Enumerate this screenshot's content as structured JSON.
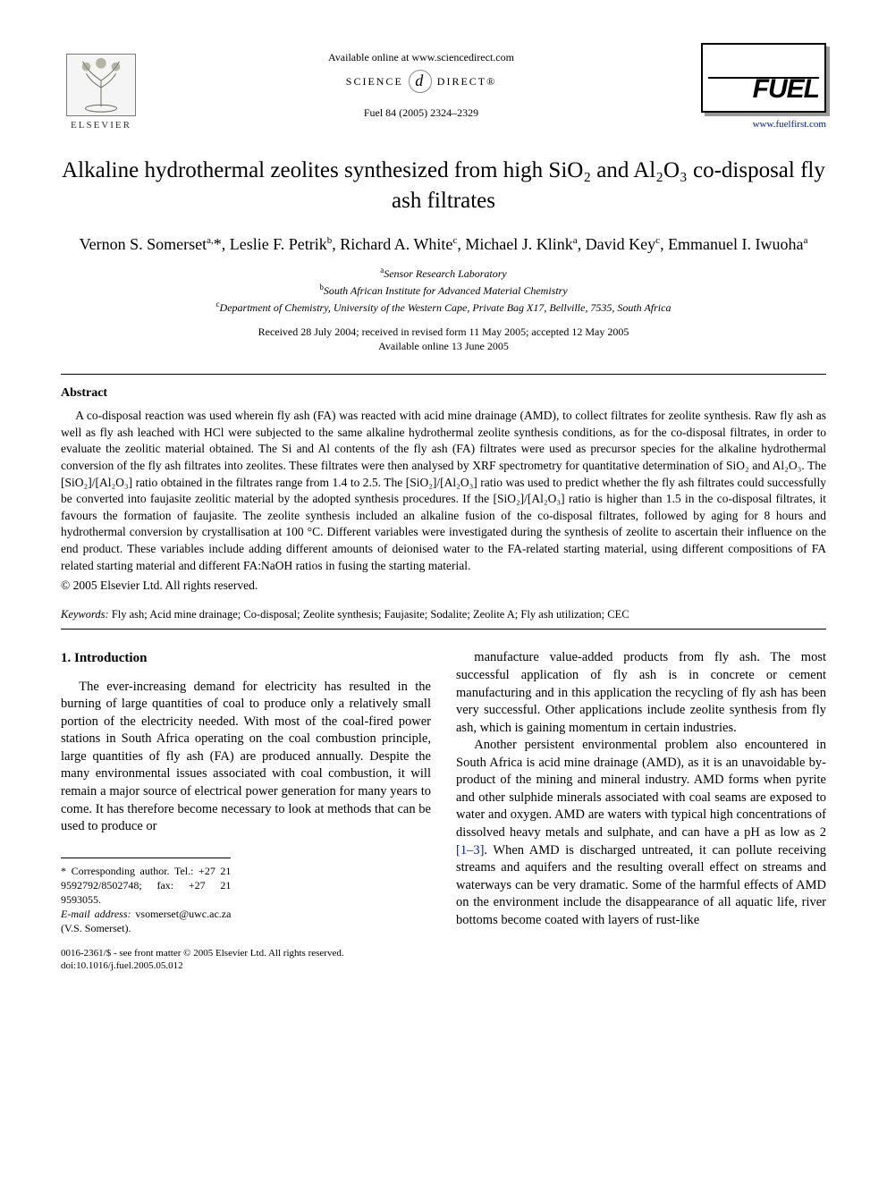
{
  "header": {
    "available_online": "Available online at www.sciencedirect.com",
    "sd_left": "SCIENCE",
    "sd_right": "DIRECT®",
    "citation": "Fuel 84 (2005) 2324–2329",
    "elsevier_text": "ELSEVIER",
    "fuel_logo_text": "FUEL",
    "fuel_url": "www.fuelfirst.com"
  },
  "title": "Alkaline hydrothermal zeolites synthesized from high SiO₂ and Al₂O₃ co-disposal fly ash filtrates",
  "authors_html": "Vernon S. Somerset<sup>a,</sup>*, Leslie F. Petrik<sup>b</sup>, Richard A. White<sup>c</sup>, Michael J. Klink<sup>a</sup>, David Key<sup>c</sup>, Emmanuel I. Iwuoha<sup>a</sup>",
  "affiliations": {
    "a": "Sensor Research Laboratory",
    "b": "South African Institute for Advanced Material Chemistry",
    "c": "Department of Chemistry, University of the Western Cape, Private Bag X17, Bellville, 7535, South Africa"
  },
  "dates": {
    "received": "Received 28 July 2004; received in revised form 11 May 2005; accepted 12 May 2005",
    "online": "Available online 13 June 2005"
  },
  "abstract": {
    "heading": "Abstract",
    "body": "A co-disposal reaction was used wherein fly ash (FA) was reacted with acid mine drainage (AMD), to collect filtrates for zeolite synthesis. Raw fly ash as well as fly ash leached with HCl were subjected to the same alkaline hydrothermal zeolite synthesis conditions, as for the co-disposal filtrates, in order to evaluate the zeolitic material obtained. The Si and Al contents of the fly ash (FA) filtrates were used as precursor species for the alkaline hydrothermal conversion of the fly ash filtrates into zeolites. These filtrates were then analysed by XRF spectrometry for quantitative determination of SiO₂ and Al₂O₃. The [SiO₂]/[Al₂O₃] ratio obtained in the filtrates range from 1.4 to 2.5. The [SiO₂]/[Al₂O₃] ratio was used to predict whether the fly ash filtrates could successfully be converted into faujasite zeolitic material by the adopted synthesis procedures. If the [SiO₂]/[Al₂O₃] ratio is higher than 1.5 in the co-disposal filtrates, it favours the formation of faujasite. The zeolite synthesis included an alkaline fusion of the co-disposal filtrates, followed by aging for 8 hours and hydrothermal conversion by crystallisation at 100 °C. Different variables were investigated during the synthesis of zeolite to ascertain their influence on the end product. These variables include adding different amounts of deionised water to the FA-related starting material, using different compositions of FA related starting material and different FA:NaOH ratios in fusing the starting material.",
    "copyright": "© 2005 Elsevier Ltd. All rights reserved."
  },
  "keywords": {
    "label": "Keywords:",
    "text": " Fly ash; Acid mine drainage; Co-disposal; Zeolite synthesis; Faujasite; Sodalite; Zeolite A; Fly ash utilization; CEC"
  },
  "section1": {
    "heading": "1. Introduction",
    "p1": "The ever-increasing demand for electricity has resulted in the burning of large quantities of coal to produce only a relatively small portion of the electricity needed. With most of the coal-fired power stations in South Africa operating on the coal combustion principle, large quantities of fly ash (FA) are produced annually. Despite the many environmental issues associated with coal combustion, it will remain a major source of electrical power generation for many years to come. It has therefore become necessary to look at methods that can be used to produce or",
    "p2": "manufacture value-added products from fly ash. The most successful application of fly ash is in concrete or cement manufacturing and in this application the recycling of fly ash has been very successful. Other applications include zeolite synthesis from fly ash, which is gaining momentum in certain industries.",
    "p3a": "Another persistent environmental problem also encountered in South Africa is acid mine drainage (AMD), as it is an unavoidable by-product of the mining and mineral industry. AMD forms when pyrite and other sulphide minerals associated with coal seams are exposed to water and oxygen. AMD are waters with typical high concentrations of dissolved heavy metals and sulphate, and can have a pH as low as 2 ",
    "p3_ref": "[1–3]",
    "p3b": ". When AMD is discharged untreated, it can pollute receiving streams and aquifers and the resulting overall effect on streams and waterways can be very dramatic. Some of the harmful effects of AMD on the environment include the disappearance of all aquatic life, river bottoms become coated with layers of rust-like"
  },
  "footnotes": {
    "corr": "* Corresponding author. Tel.: +27 21 9592792/8502748; fax: +27 21 9593055.",
    "email_label": "E-mail address:",
    "email_value": " vsomerset@uwc.ac.za (V.S. Somerset)."
  },
  "footmatter": {
    "line1": "0016-2361/$ - see front matter © 2005 Elsevier Ltd. All rights reserved.",
    "line2": "doi:10.1016/j.fuel.2005.05.012"
  },
  "colors": {
    "link": "#0020aa",
    "text": "#000000",
    "rule": "#000000"
  }
}
